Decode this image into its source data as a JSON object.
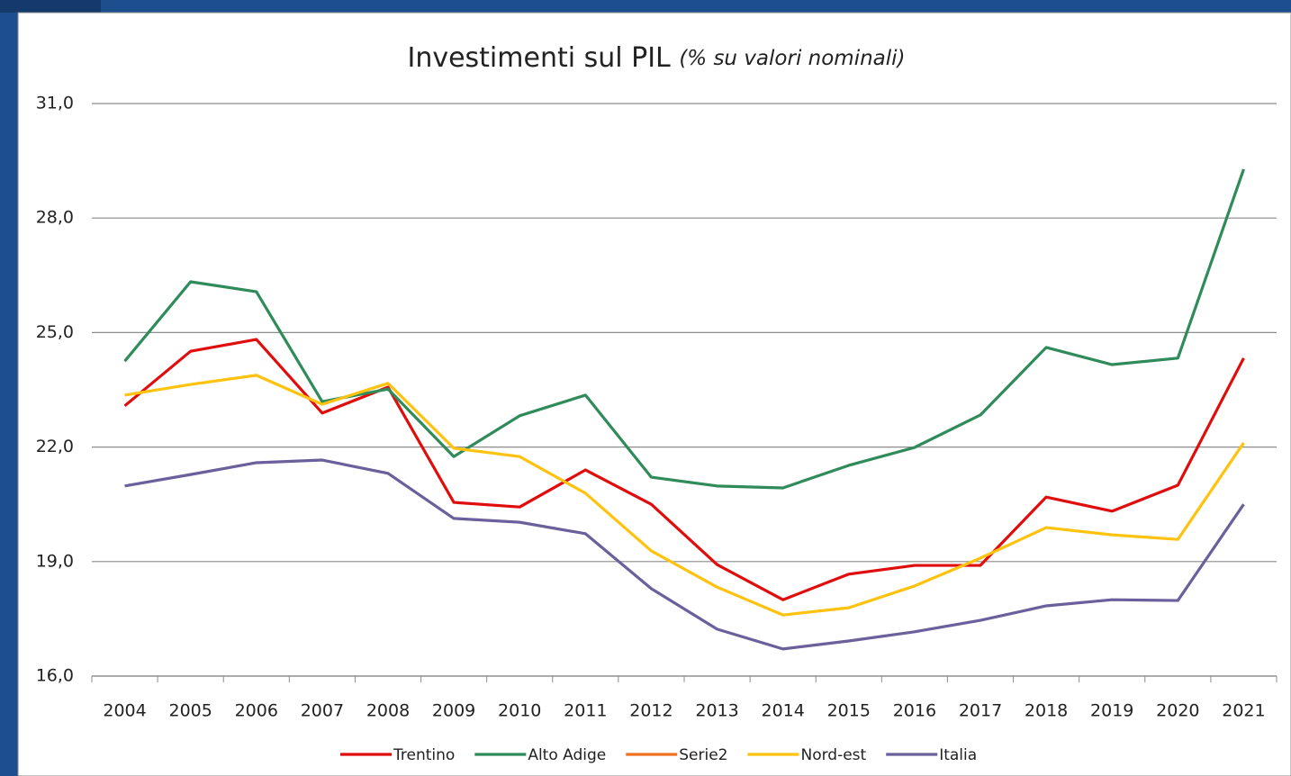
{
  "chart_data": {
    "type": "line",
    "title": "Investimenti sul PIL",
    "subtitle": "(% su valori nominali)",
    "categories": [
      "2004",
      "2005",
      "2006",
      "2007",
      "2008",
      "2009",
      "2010",
      "2011",
      "2012",
      "2013",
      "2014",
      "2015",
      "2016",
      "2017",
      "2018",
      "2019",
      "2020",
      "2021"
    ],
    "series": [
      {
        "name": "Trentino",
        "color": "#e00d0d",
        "values": [
          23.08,
          24.51,
          24.82,
          22.89,
          23.57,
          20.55,
          20.43,
          21.4,
          20.5,
          18.92,
          18.0,
          18.67,
          18.9,
          18.9,
          20.69,
          20.32,
          21.0,
          24.33
        ]
      },
      {
        "name": "Alto Adige",
        "color": "#2f8c5a",
        "values": [
          24.25,
          26.33,
          26.07,
          23.19,
          23.52,
          21.75,
          22.82,
          23.36,
          21.21,
          20.98,
          20.93,
          21.52,
          21.99,
          22.84,
          24.61,
          24.16,
          24.33,
          29.28
        ]
      },
      {
        "name": "Serie2",
        "color": "#f07020",
        "values": [
          null,
          null,
          null,
          null,
          null,
          null,
          null,
          null,
          null,
          null,
          null,
          null,
          null,
          null,
          null,
          null,
          null,
          null
        ]
      },
      {
        "name": "Nord-est",
        "color": "#ffc20e",
        "values": [
          23.36,
          23.64,
          23.88,
          23.12,
          23.67,
          21.97,
          21.75,
          20.79,
          19.28,
          18.33,
          17.6,
          17.79,
          18.36,
          19.09,
          19.89,
          19.7,
          19.58,
          22.11
        ]
      },
      {
        "name": "Italia",
        "color": "#6b5f9c",
        "values": [
          20.98,
          21.28,
          21.59,
          21.66,
          21.31,
          20.13,
          20.03,
          19.73,
          18.29,
          17.23,
          16.71,
          16.92,
          17.16,
          17.46,
          17.84,
          18.0,
          17.98,
          20.5
        ]
      }
    ],
    "ylim": [
      16,
      31
    ],
    "yticks": [
      {
        "value": 16,
        "label": "16,0"
      },
      {
        "value": 19,
        "label": "19,0"
      },
      {
        "value": 22,
        "label": "22,0"
      },
      {
        "value": 25,
        "label": "25,0"
      },
      {
        "value": 28,
        "label": "28,0"
      },
      {
        "value": 31,
        "label": "31,0"
      }
    ],
    "grid": true,
    "legend": "bottom"
  }
}
